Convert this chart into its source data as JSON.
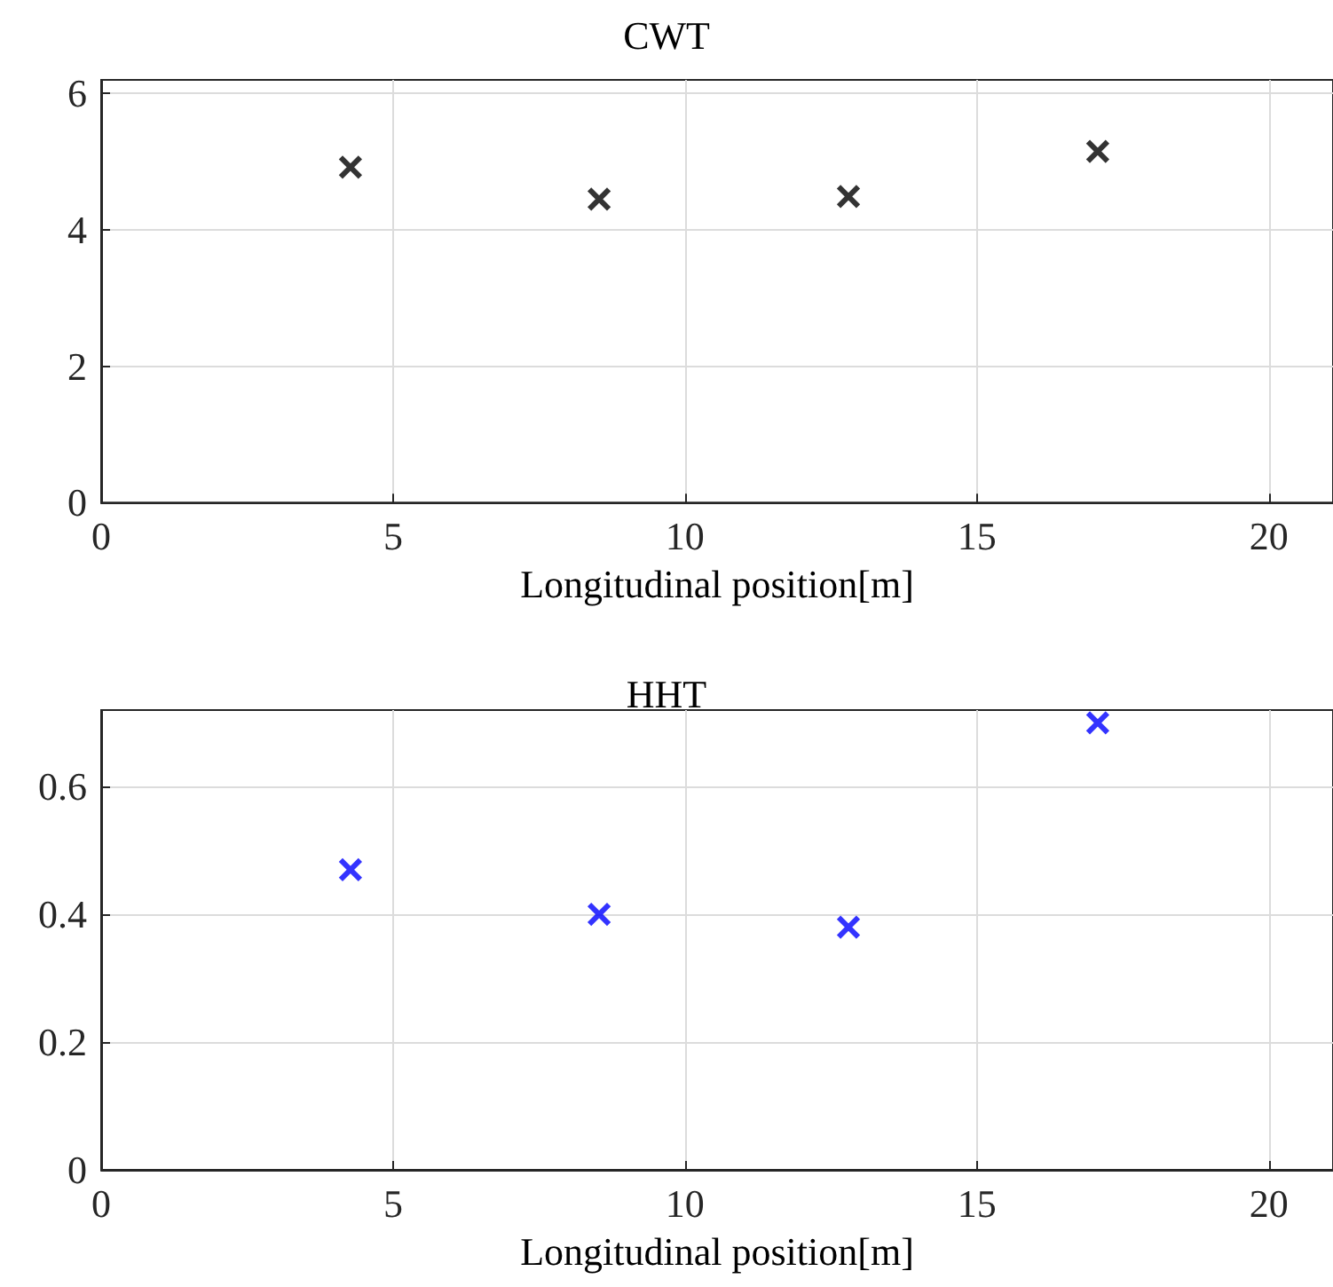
{
  "chart_data": [
    {
      "type": "scatter",
      "title": "CWT",
      "xlabel": "Longitudinal position[m]",
      "x": [
        4.27,
        8.53,
        12.8,
        17.07
      ],
      "values": [
        4.92,
        4.45,
        4.49,
        5.15
      ],
      "color": "#000000",
      "marker": "cross",
      "xlim": [
        0,
        21.1
      ],
      "ylim": [
        0,
        6.2
      ],
      "xticks": [
        0,
        5,
        10,
        15,
        20
      ],
      "yticks": [
        0,
        2,
        4,
        6
      ],
      "grid": true
    },
    {
      "type": "scatter",
      "title": "HHT",
      "xlabel": "Longitudinal position[m]",
      "x": [
        4.27,
        8.53,
        12.8,
        17.07
      ],
      "values": [
        0.47,
        0.4,
        0.38,
        0.7
      ],
      "color": "#0000ff",
      "marker": "cross",
      "xlim": [
        0,
        21.1
      ],
      "ylim": [
        0,
        0.72
      ],
      "xticks": [
        0,
        5,
        10,
        15,
        20
      ],
      "yticks": [
        0,
        0.2,
        0.4,
        0.6
      ],
      "grid": true
    }
  ]
}
